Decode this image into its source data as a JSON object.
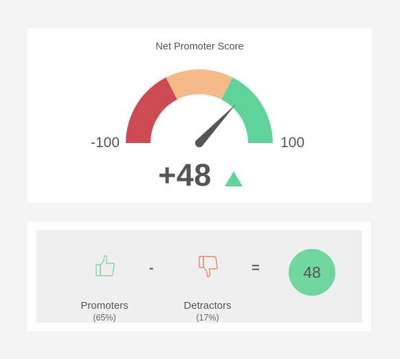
{
  "gauge": {
    "title": "Net Promoter Score",
    "min_label": "-100",
    "max_label": "100",
    "min": -100,
    "max": 100,
    "value": 48,
    "value_display": "+48",
    "trend": "up",
    "segments": [
      {
        "from": -100,
        "to": -30,
        "color": "#cc4a52"
      },
      {
        "from": -30,
        "to": 30,
        "color": "#f5b98a"
      },
      {
        "from": 30,
        "to": 100,
        "color": "#5fd39a"
      }
    ],
    "needle_color": "#555555",
    "trend_color": "#5fd39a"
  },
  "formula": {
    "promoters": {
      "label": "Promoters",
      "percent": "(65%)",
      "icon": "thumbs-up-icon",
      "color": "#7fd7aa"
    },
    "detractors": {
      "label": "Detractors",
      "percent": "(17%)",
      "icon": "thumbs-down-icon",
      "color": "#e3876a"
    },
    "minus": "-",
    "equals": "=",
    "result": "48",
    "result_color": "#6fd69d"
  }
}
